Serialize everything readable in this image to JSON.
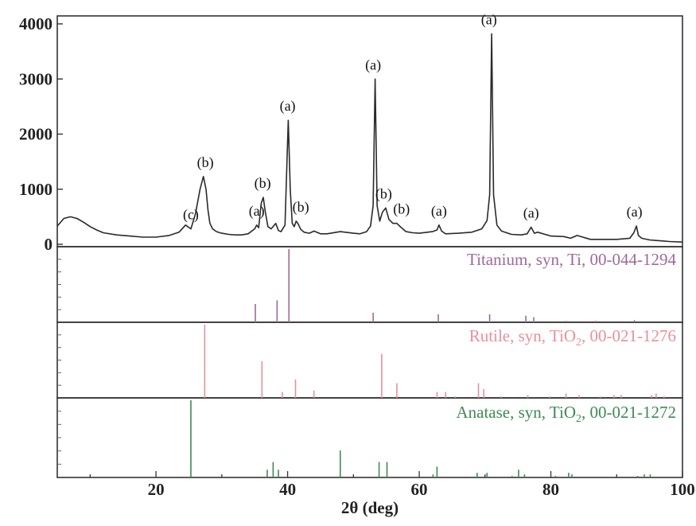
{
  "chart_data": {
    "type": "line",
    "xlabel": "2θ (deg)",
    "ylabel": "",
    "xlim": [
      5,
      100
    ],
    "ylim": [
      0,
      4000
    ],
    "x_ticks": [
      20,
      40,
      60,
      80,
      100
    ],
    "y_ticks": [
      0,
      1000,
      2000,
      3000,
      4000
    ],
    "grid": false,
    "series": [
      {
        "x": [
          5,
          6,
          7,
          8,
          9,
          10,
          11,
          12,
          14,
          16,
          18,
          20,
          22,
          23.5,
          24.5,
          25.3,
          26,
          26.7,
          27.2,
          27.6,
          27.9,
          28.2,
          28.6,
          29.2,
          30,
          31,
          32,
          33,
          34,
          35,
          35.3,
          35.6,
          36,
          36.3,
          36.6,
          37,
          37.5,
          38.2,
          38.6,
          39,
          39.6,
          40.1,
          40.4,
          40.7,
          41,
          41.3,
          41.6,
          42,
          42.5,
          43.3,
          44,
          45,
          46,
          48,
          50,
          51,
          52,
          52.6,
          53,
          53.3,
          53.6,
          54,
          54.4,
          54.9,
          55.4,
          56,
          56.6,
          57.2,
          58,
          59,
          60,
          62,
          62.7,
          63,
          63.4,
          64,
          66,
          68,
          69.5,
          70.3,
          70.7,
          71,
          71.3,
          71.8,
          72.5,
          74,
          75.5,
          76.4,
          77,
          77.5,
          78,
          80,
          82,
          83,
          84,
          86,
          88,
          90,
          92,
          92.6,
          93,
          93.3,
          93.8,
          95,
          96,
          97,
          98,
          100
        ],
        "y": [
          330,
          470,
          500,
          470,
          400,
          320,
          260,
          210,
          170,
          150,
          130,
          130,
          160,
          220,
          350,
          280,
          550,
          1000,
          1230,
          1000,
          620,
          380,
          280,
          230,
          200,
          180,
          170,
          170,
          190,
          280,
          350,
          300,
          750,
          850,
          600,
          320,
          280,
          380,
          250,
          230,
          350,
          2250,
          1000,
          380,
          320,
          420,
          370,
          270,
          220,
          200,
          240,
          190,
          190,
          230,
          200,
          190,
          230,
          330,
          700,
          3000,
          700,
          420,
          580,
          660,
          450,
          380,
          380,
          310,
          230,
          210,
          200,
          230,
          260,
          350,
          240,
          190,
          200,
          220,
          280,
          430,
          900,
          3820,
          900,
          350,
          240,
          180,
          170,
          190,
          310,
          200,
          220,
          150,
          140,
          110,
          160,
          90,
          90,
          90,
          110,
          210,
          330,
          160,
          110,
          80,
          70,
          60,
          50,
          40
        ]
      }
    ],
    "peak_labels": [
      {
        "x": 25.3,
        "y": 280,
        "text": "(c)"
      },
      {
        "x": 27.5,
        "y": 1230,
        "text": "(b)"
      },
      {
        "x": 35.3,
        "y": 350,
        "text": "(a)"
      },
      {
        "x": 36.2,
        "y": 850,
        "text": "(b)"
      },
      {
        "x": 40.0,
        "y": 2250,
        "text": "(a)"
      },
      {
        "x": 42.0,
        "y": 420,
        "text": "(b)"
      },
      {
        "x": 53.0,
        "y": 3000,
        "text": "(a)"
      },
      {
        "x": 54.6,
        "y": 660,
        "text": "(b)"
      },
      {
        "x": 57.3,
        "y": 380,
        "text": "(b)"
      },
      {
        "x": 63.0,
        "y": 350,
        "text": "(a)"
      },
      {
        "x": 70.6,
        "y": 3820,
        "text": "(a)"
      },
      {
        "x": 77.0,
        "y": 310,
        "text": "(a)"
      },
      {
        "x": 92.7,
        "y": 330,
        "text": "(a)"
      }
    ],
    "reference_patterns": [
      {
        "label": "Titanium, syn, Ti, 00-044-1294",
        "color": "#a0689a",
        "x": [
          35.1,
          38.4,
          40.2,
          53.0,
          62.9,
          70.7,
          76.2,
          77.4,
          82.3,
          86.8,
          92.7
        ],
        "intensity": [
          25,
          30,
          100,
          13,
          11,
          11,
          9,
          7,
          2,
          2,
          3
        ]
      },
      {
        "label": "Rutile, syn, TiO2, 00-021-1276",
        "color": "#e8909a",
        "x": [
          27.4,
          36.1,
          39.2,
          41.2,
          44.0,
          54.3,
          56.6,
          62.7,
          64.0,
          65.5,
          69.0,
          69.8,
          72.4,
          76.5,
          79.8,
          82.3,
          84.3,
          87.5,
          89.6,
          90.7,
          95.3,
          96.0,
          97.2
        ],
        "intensity": [
          100,
          50,
          8,
          25,
          10,
          60,
          20,
          8,
          8,
          2,
          20,
          12,
          2,
          4,
          2,
          6,
          4,
          2,
          4,
          4,
          4,
          6,
          2
        ]
      },
      {
        "label": "Anatase, syn, TiO2, 00-021-1272",
        "color": "#3d8a55",
        "x": [
          25.3,
          36.9,
          37.8,
          38.6,
          48.0,
          53.9,
          55.1,
          62.1,
          62.7,
          68.8,
          70.3,
          74.1,
          75.1,
          76.0,
          80.7,
          82.7,
          83.2,
          93.2,
          94.2,
          95.1
        ],
        "intensity": [
          100,
          10,
          20,
          10,
          35,
          20,
          20,
          4,
          14,
          6,
          6,
          2,
          10,
          4,
          2,
          6,
          4,
          2,
          4,
          4
        ]
      }
    ]
  },
  "labels": {
    "x_axis_title": "2θ (deg)",
    "ref_titanium": "Titanium, syn, Ti, 00-044-1294",
    "ref_rutile_prefix": "Rutile, syn, TiO",
    "ref_rutile_sub": "2",
    "ref_rutile_suffix": ", 00-021-1276",
    "ref_anatase_prefix": "Anatase, syn, TiO",
    "ref_anatase_sub": "2",
    "ref_anatase_suffix": ", 00-021-1272"
  },
  "colors": {
    "frame": "#333333",
    "pattern_line": "#2a2a2a",
    "titanium": "#a0689a",
    "rutile": "#e8909a",
    "anatase": "#3d8a55"
  }
}
